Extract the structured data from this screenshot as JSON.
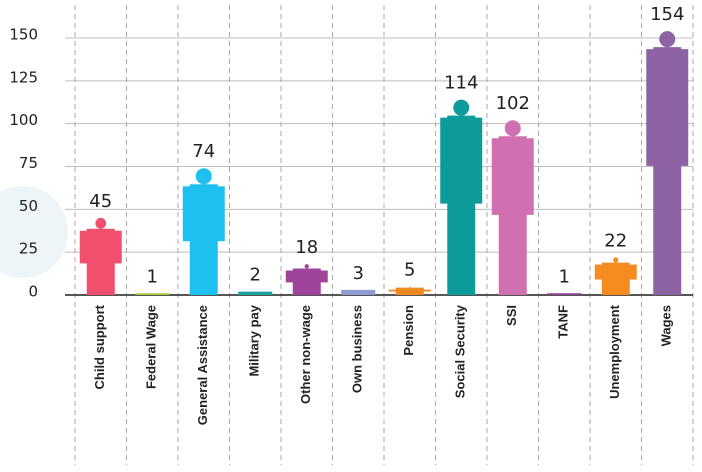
{
  "chart_data": {
    "type": "bar",
    "categories": [
      "Child support",
      "Federal Wage",
      "General Assistance",
      "Military pay",
      "Other non-wage",
      "Own business",
      "Pension",
      "Social Security",
      "SSI",
      "TANF",
      "Unemployment",
      "Wages"
    ],
    "values": [
      45,
      1,
      74,
      2,
      18,
      3,
      5,
      114,
      102,
      1,
      22,
      154
    ],
    "colors": [
      "#f0506e",
      "#a6c93a",
      "#1ec0f0",
      "#1aa39a",
      "#a0439a",
      "#8f9ad0",
      "#f38a1f",
      "#0d9b9b",
      "#d070b0",
      "#8f3f95",
      "#f68b1f",
      "#8e63a4"
    ],
    "ylim": [
      0,
      150
    ],
    "yticks": [
      0,
      25,
      50,
      75,
      100,
      125,
      150
    ],
    "grid": true
  }
}
